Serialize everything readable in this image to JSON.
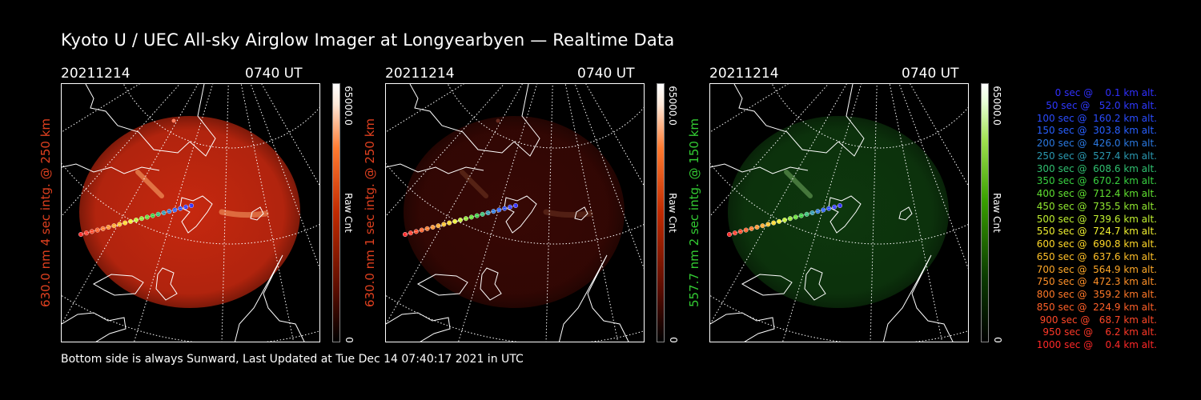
{
  "title": "Kyoto U / UEC All-sky Airglow Imager at Longyearbyen — Realtime Data",
  "footer": "Bottom side is always Sunward, Last Updated at Tue Dec 14 07:40:17 2021 in UTC",
  "panels": [
    {
      "date": "20211214",
      "time": "0740 UT",
      "side_label": "630.0 nm 4 sec intg. @ 250 km",
      "side_color": "#e0401f",
      "colorbar_max": "65000.0",
      "colorbar_min": "0",
      "colorbar_unit": "Raw Cnt",
      "color_scheme": "red",
      "overlay_color": "#d02a10",
      "aurora_intensity": 1.0
    },
    {
      "date": "20211214",
      "time": "0740 UT",
      "side_label": "630.0 nm 1 sec intg. @ 250 km",
      "side_color": "#e0401f",
      "colorbar_max": "65000.0",
      "colorbar_min": "0",
      "colorbar_unit": "Raw Cnt",
      "color_scheme": "red",
      "overlay_color": "#3a0804",
      "aurora_intensity": 0.3
    },
    {
      "date": "20211214",
      "time": "0740 UT",
      "side_label": "557.7 nm 2 sec intg. @ 150 km",
      "side_color": "#33cc33",
      "colorbar_max": "65000.0",
      "colorbar_min": "0",
      "colorbar_unit": "Raw Cnt",
      "color_scheme": "green",
      "overlay_color": "#0e3a0e",
      "aurora_intensity": 0.6
    }
  ],
  "legend": [
    {
      "text": "   0 sec @    0.1 km alt.",
      "color": "#3030ff"
    },
    {
      "text": "  50 sec @   52.0 km alt.",
      "color": "#2e38ff"
    },
    {
      "text": " 100 sec @  160.2 km alt.",
      "color": "#2a4cff"
    },
    {
      "text": " 150 sec @  303.8 km alt.",
      "color": "#2860ff"
    },
    {
      "text": " 200 sec @  426.0 km alt.",
      "color": "#2a78e0"
    },
    {
      "text": " 250 sec @  527.4 km alt.",
      "color": "#2a98b0"
    },
    {
      "text": " 300 sec @  608.6 km alt.",
      "color": "#30c070"
    },
    {
      "text": " 350 sec @  670.2 km alt.",
      "color": "#38d040"
    },
    {
      "text": " 400 sec @  712.4 km alt.",
      "color": "#60e030"
    },
    {
      "text": " 450 sec @  735.5 km alt.",
      "color": "#90e830"
    },
    {
      "text": " 500 sec @  739.6 km alt.",
      "color": "#c0f030"
    },
    {
      "text": " 550 sec @  724.7 km alt.",
      "color": "#f0f030"
    },
    {
      "text": " 600 sec @  690.8 km alt.",
      "color": "#ffd828"
    },
    {
      "text": " 650 sec @  637.6 km alt.",
      "color": "#ffc028"
    },
    {
      "text": " 700 sec @  564.9 km alt.",
      "color": "#ffa828"
    },
    {
      "text": " 750 sec @  472.3 km alt.",
      "color": "#ff9028"
    },
    {
      "text": " 800 sec @  359.2 km alt.",
      "color": "#ff7828"
    },
    {
      "text": " 850 sec @  224.9 km alt.",
      "color": "#ff6028"
    },
    {
      "text": " 900 sec @   68.7 km alt.",
      "color": "#ff4828"
    },
    {
      "text": " 950 sec @    6.2 km alt.",
      "color": "#ff3828"
    },
    {
      "text": "1000 sec @    0.4 km alt.",
      "color": "#ff2828"
    }
  ]
}
